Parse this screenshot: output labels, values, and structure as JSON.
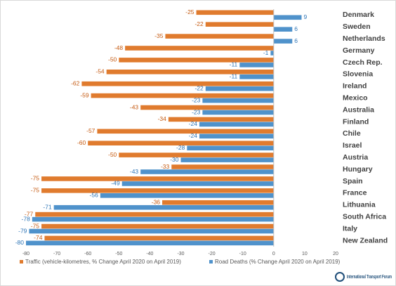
{
  "chart_data": {
    "type": "bar",
    "orientation": "horizontal",
    "categories": [
      "Denmark",
      "Sweden",
      "Netherlands",
      "Germany",
      "Czech Rep.",
      "Slovenia",
      "Ireland",
      "Mexico",
      "Australia",
      "Finland",
      "Chile",
      "Israel",
      "Austria",
      "Hungary",
      "Spain",
      "France",
      "Lithuania",
      "South Africa",
      "Italy",
      "New Zealand"
    ],
    "series": [
      {
        "name": "Traffic (vehicle-kilometres, % Change  April 2020 on April 2019)",
        "color": "#e07b2e",
        "values": [
          -25,
          -22,
          -35,
          -48,
          -50,
          -54,
          -62,
          -59,
          -43,
          -34,
          -57,
          -60,
          -50,
          -33,
          -75,
          -75,
          -36,
          -77,
          -75,
          -74
        ]
      },
      {
        "name": "Road Deaths (% Change April 2020 on April 2019)",
        "color": "#4f92cb",
        "values": [
          9,
          6,
          6,
          -1,
          -11,
          -11,
          -22,
          -23,
          -23,
          -24,
          -24,
          -28,
          -30,
          -43,
          -49,
          -56,
          -71,
          -78,
          -79,
          -80
        ]
      }
    ],
    "xlim": [
      -80,
      20
    ],
    "xticks": [
      -80,
      -70,
      -60,
      -50,
      -40,
      -30,
      -20,
      -10,
      0,
      10,
      20
    ],
    "grid": false,
    "legend": "bottom",
    "annotations": [
      "International Transport Forum"
    ]
  }
}
